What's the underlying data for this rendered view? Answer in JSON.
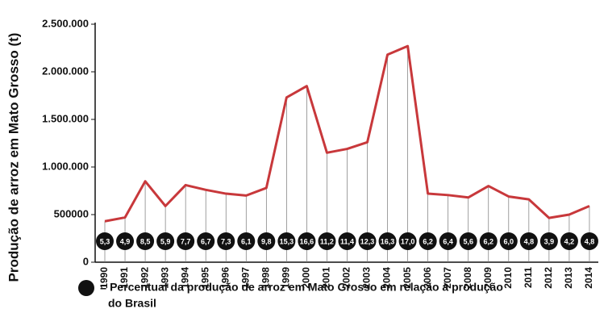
{
  "chart_data": {
    "type": "line",
    "ylabel": "Produção de arroz em Mato Grosso (t)",
    "categories": [
      "1990",
      "1991",
      "1992",
      "1993",
      "1994",
      "1995",
      "1996",
      "1997",
      "1998",
      "1999",
      "2000",
      "2001",
      "2002",
      "2003",
      "2004",
      "2005",
      "2006",
      "2007",
      "2008",
      "2009",
      "2010",
      "2011",
      "2012",
      "2013",
      "2014"
    ],
    "series": [
      {
        "color": "#c8383b",
        "values": [
          430000,
          470000,
          850000,
          590000,
          810000,
          760000,
          720000,
          700000,
          780000,
          1730000,
          1850000,
          1150000,
          1190000,
          1260000,
          2180000,
          2270000,
          720000,
          705000,
          680000,
          800000,
          690000,
          660000,
          465000,
          500000,
          590000
        ]
      }
    ],
    "shares": [
      {
        "value": 5.3,
        "label": "5,3"
      },
      {
        "value": 4.9,
        "label": "4,9"
      },
      {
        "value": 8.5,
        "label": "8,5"
      },
      {
        "value": 5.9,
        "label": "5,9"
      },
      {
        "value": 7.7,
        "label": "7,7"
      },
      {
        "value": 6.7,
        "label": "6,7"
      },
      {
        "value": 7.3,
        "label": "7,3"
      },
      {
        "value": 6.1,
        "label": "6,1"
      },
      {
        "value": 9.8,
        "label": "9,8"
      },
      {
        "value": 15.3,
        "label": "15,3"
      },
      {
        "value": 16.6,
        "label": "16,6"
      },
      {
        "value": 11.2,
        "label": "11,2"
      },
      {
        "value": 11.4,
        "label": "11,4"
      },
      {
        "value": 12.3,
        "label": "12,3"
      },
      {
        "value": 16.3,
        "label": "16,3"
      },
      {
        "value": 17.0,
        "label": "17,0"
      },
      {
        "value": 6.2,
        "label": "6,2"
      },
      {
        "value": 6.4,
        "label": "6,4"
      },
      {
        "value": 5.6,
        "label": "5,6"
      },
      {
        "value": 6.2,
        "label": "6,2"
      },
      {
        "value": 6.0,
        "label": "6,0"
      },
      {
        "value": 4.8,
        "label": "4,8"
      },
      {
        "value": 3.9,
        "label": "3,9"
      },
      {
        "value": 4.2,
        "label": "4,2"
      },
      {
        "value": 4.8,
        "label": "4,8"
      }
    ],
    "legend_note": [
      "= Percentual da produção de arroz em Mato Grosso em relação à produção",
      "do Brasil"
    ],
    "ylim": [
      0,
      2500000
    ],
    "yticks": [
      0,
      500000,
      {
        "value": 1000000,
        "label": "1.000.000"
      },
      {
        "value": 1500000,
        "label": "1.500.000"
      },
      {
        "value": 2000000,
        "label": "2.000.000"
      },
      {
        "value": 2500000,
        "label": "2.500.000"
      }
    ]
  }
}
